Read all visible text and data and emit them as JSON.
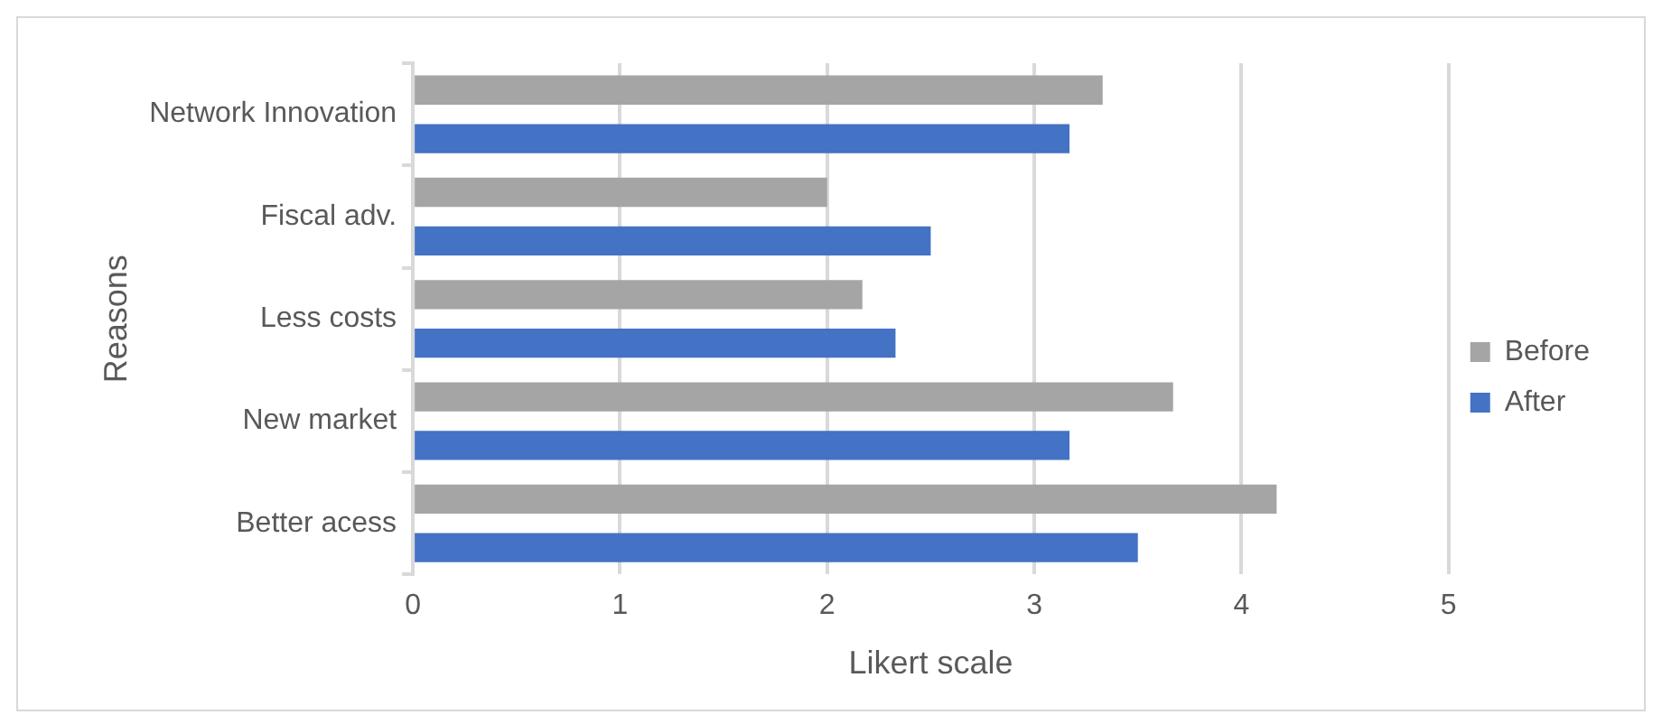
{
  "chart_data": {
    "type": "bar",
    "orientation": "horizontal",
    "xlabel": "Likert scale",
    "ylabel": "Reasons",
    "categories": [
      "Network Innovation",
      "Fiscal adv.",
      "Less costs",
      "New market",
      "Better acess"
    ],
    "series": [
      {
        "name": "Before",
        "color": "#a5a5a5",
        "values": [
          3.33,
          2,
          2.17,
          3.67,
          4.17
        ]
      },
      {
        "name": "After",
        "color": "#4472c4",
        "values": [
          3.17,
          2.5,
          2.33,
          3.17,
          3.5
        ]
      }
    ],
    "xlim": [
      0,
      5
    ],
    "xticks": [
      0,
      1,
      2,
      3,
      4,
      5
    ],
    "grid": "x",
    "legend": "right"
  }
}
